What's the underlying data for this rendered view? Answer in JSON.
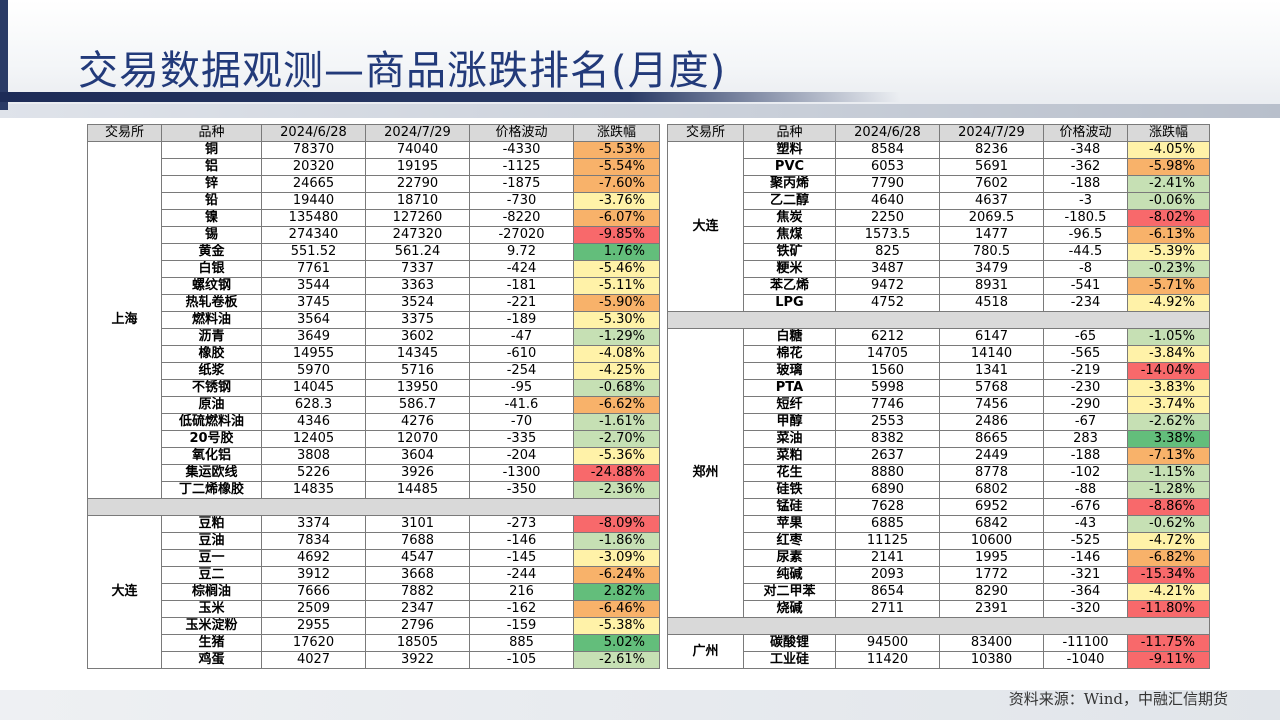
{
  "title": "交易数据观测—商品涨跌排名(月度)",
  "source": "资料来源：Wind，中融汇信期货",
  "headers": [
    "交易所",
    "品种",
    "2024/6/28",
    "2024/7/29",
    "价格波动",
    "涨跌幅"
  ],
  "colors": {
    "light_green": "#c6e0b4",
    "green": "#63be7b",
    "light_yellow": "#fff2a8",
    "orange": "#f8b26a",
    "red": "#f8696b",
    "header_gray": "#d9d9d9",
    "title_blue": "#223a7a"
  },
  "left_groups": [
    {
      "exchange": "上海",
      "rows": [
        [
          "铜",
          "78370",
          "74040",
          "-4330",
          "-5.53%"
        ],
        [
          "铝",
          "20320",
          "19195",
          "-1125",
          "-5.54%"
        ],
        [
          "锌",
          "24665",
          "22790",
          "-1875",
          "-7.60%"
        ],
        [
          "铅",
          "19440",
          "18710",
          "-730",
          "-3.76%"
        ],
        [
          "镍",
          "135480",
          "127260",
          "-8220",
          "-6.07%"
        ],
        [
          "锡",
          "274340",
          "247320",
          "-27020",
          "-9.85%"
        ],
        [
          "黄金",
          "551.52",
          "561.24",
          "9.72",
          "1.76%"
        ],
        [
          "白银",
          "7761",
          "7337",
          "-424",
          "-5.46%"
        ],
        [
          "螺纹钢",
          "3544",
          "3363",
          "-181",
          "-5.11%"
        ],
        [
          "热轧卷板",
          "3745",
          "3524",
          "-221",
          "-5.90%"
        ],
        [
          "燃料油",
          "3564",
          "3375",
          "-189",
          "-5.30%"
        ],
        [
          "沥青",
          "3649",
          "3602",
          "-47",
          "-1.29%"
        ],
        [
          "橡胶",
          "14955",
          "14345",
          "-610",
          "-4.08%"
        ],
        [
          "纸浆",
          "5970",
          "5716",
          "-254",
          "-4.25%"
        ],
        [
          "不锈钢",
          "14045",
          "13950",
          "-95",
          "-0.68%"
        ],
        [
          "原油",
          "628.3",
          "586.7",
          "-41.6",
          "-6.62%"
        ],
        [
          "低硫燃料油",
          "4346",
          "4276",
          "-70",
          "-1.61%"
        ],
        [
          "20号胶",
          "12405",
          "12070",
          "-335",
          "-2.70%"
        ],
        [
          "氧化铝",
          "3808",
          "3604",
          "-204",
          "-5.36%"
        ],
        [
          "集运欧线",
          "5226",
          "3926",
          "-1300",
          "-24.88%"
        ],
        [
          "丁二烯橡胶",
          "14835",
          "14485",
          "-350",
          "-2.36%"
        ]
      ]
    },
    {
      "exchange": "大连",
      "rows": [
        [
          "豆粕",
          "3374",
          "3101",
          "-273",
          "-8.09%"
        ],
        [
          "豆油",
          "7834",
          "7688",
          "-146",
          "-1.86%"
        ],
        [
          "豆一",
          "4692",
          "4547",
          "-145",
          "-3.09%"
        ],
        [
          "豆二",
          "3912",
          "3668",
          "-244",
          "-6.24%"
        ],
        [
          "棕榈油",
          "7666",
          "7882",
          "216",
          "2.82%"
        ],
        [
          "玉米",
          "2509",
          "2347",
          "-162",
          "-6.46%"
        ],
        [
          "玉米淀粉",
          "2955",
          "2796",
          "-159",
          "-5.38%"
        ],
        [
          "生猪",
          "17620",
          "18505",
          "885",
          "5.02%"
        ],
        [
          "鸡蛋",
          "4027",
          "3922",
          "-105",
          "-2.61%"
        ]
      ]
    }
  ],
  "right_groups": [
    {
      "exchange": "大连",
      "rows": [
        [
          "塑料",
          "8584",
          "8236",
          "-348",
          "-4.05%"
        ],
        [
          "PVC",
          "6053",
          "5691",
          "-362",
          "-5.98%"
        ],
        [
          "聚丙烯",
          "7790",
          "7602",
          "-188",
          "-2.41%"
        ],
        [
          "乙二醇",
          "4640",
          "4637",
          "-3",
          "-0.06%"
        ],
        [
          "焦炭",
          "2250",
          "2069.5",
          "-180.5",
          "-8.02%"
        ],
        [
          "焦煤",
          "1573.5",
          "1477",
          "-96.5",
          "-6.13%"
        ],
        [
          "铁矿",
          "825",
          "780.5",
          "-44.5",
          "-5.39%"
        ],
        [
          "粳米",
          "3487",
          "3479",
          "-8",
          "-0.23%"
        ],
        [
          "苯乙烯",
          "9472",
          "8931",
          "-541",
          "-5.71%"
        ],
        [
          "LPG",
          "4752",
          "4518",
          "-234",
          "-4.92%"
        ]
      ]
    },
    {
      "exchange": "郑州",
      "rows": [
        [
          "白糖",
          "6212",
          "6147",
          "-65",
          "-1.05%"
        ],
        [
          "棉花",
          "14705",
          "14140",
          "-565",
          "-3.84%"
        ],
        [
          "玻璃",
          "1560",
          "1341",
          "-219",
          "-14.04%"
        ],
        [
          "PTA",
          "5998",
          "5768",
          "-230",
          "-3.83%"
        ],
        [
          "短纤",
          "7746",
          "7456",
          "-290",
          "-3.74%"
        ],
        [
          "甲醇",
          "2553",
          "2486",
          "-67",
          "-2.62%"
        ],
        [
          "菜油",
          "8382",
          "8665",
          "283",
          "3.38%"
        ],
        [
          "菜粕",
          "2637",
          "2449",
          "-188",
          "-7.13%"
        ],
        [
          "花生",
          "8880",
          "8778",
          "-102",
          "-1.15%"
        ],
        [
          "硅铁",
          "6890",
          "6802",
          "-88",
          "-1.28%"
        ],
        [
          "锰硅",
          "7628",
          "6952",
          "-676",
          "-8.86%"
        ],
        [
          "苹果",
          "6885",
          "6842",
          "-43",
          "-0.62%"
        ],
        [
          "红枣",
          "11125",
          "10600",
          "-525",
          "-4.72%"
        ],
        [
          "尿素",
          "2141",
          "1995",
          "-146",
          "-6.82%"
        ],
        [
          "纯碱",
          "2093",
          "1772",
          "-321",
          "-15.34%"
        ],
        [
          "对二甲苯",
          "8654",
          "8290",
          "-364",
          "-4.21%"
        ],
        [
          "烧碱",
          "2711",
          "2391",
          "-320",
          "-11.80%"
        ]
      ]
    },
    {
      "exchange": "广州",
      "rows": [
        [
          "碳酸锂",
          "94500",
          "83400",
          "-11100",
          "-11.75%"
        ],
        [
          "工业硅",
          "11420",
          "10380",
          "-1040",
          "-9.11%"
        ]
      ]
    }
  ]
}
